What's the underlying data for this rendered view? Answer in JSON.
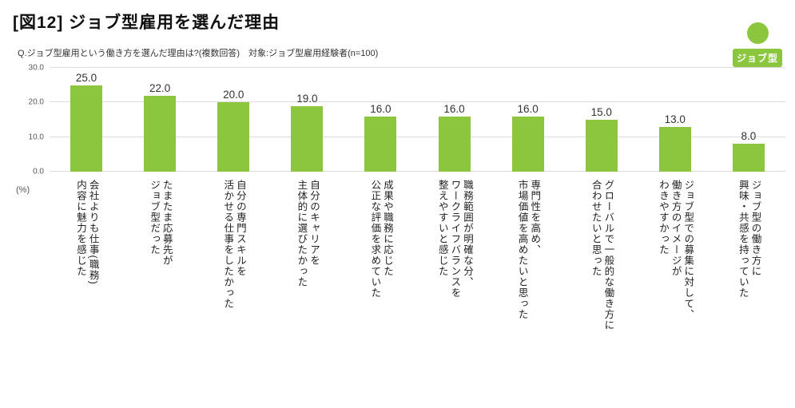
{
  "header": {
    "title": "[図12] ジョブ型雇用を選んだ理由",
    "subtitle": "Q.ジョブ型雇用という働き方を選んだ理由は?(複数回答)　対象:ジョブ型雇用経験者(n=100)",
    "badge_label": "ジョブ型"
  },
  "colors": {
    "bar_green": "#8CC63F",
    "badge_green": "#8CC63F"
  },
  "chart_data": {
    "type": "bar",
    "title": "ジョブ型雇用を選んだ理由",
    "categories": [
      "会社よりも仕事(職務)\n内容に魅力を感じた",
      "たまたま応募先が\nジョブ型だった",
      "自分の専門スキルを\n活かせる仕事をしたかった",
      "自分のキャリアを\n主体的に選びたかった",
      "成果や職務に応じた\n公正な評価を求めていた",
      "職務範囲が明確な分、\nワークライフバランスを\n整えやすいと感じた",
      "専門性を高め、\n市場価値を高めたいと思った",
      "グローバルで一般的な働き方に\n合わせたいと思った",
      "ジョブ型での募集に対して、\n働き方のイメージが\nわきやすかった",
      "ジョブ型の働き方に\n興味・共感を持っていた"
    ],
    "values": [
      25.0,
      22.0,
      20.0,
      19.0,
      16.0,
      16.0,
      16.0,
      15.0,
      13.0,
      8.0
    ],
    "value_labels": [
      "25.0",
      "22.0",
      "20.0",
      "19.0",
      "16.0",
      "16.0",
      "16.0",
      "15.0",
      "13.0",
      "8.0"
    ],
    "ylabel": "(%)",
    "ylim": [
      0,
      30
    ],
    "yticks": [
      {
        "value": 0,
        "label": "0.0"
      },
      {
        "value": 10,
        "label": "10.0"
      },
      {
        "value": 20,
        "label": "20.0"
      },
      {
        "value": 30,
        "label": "30.0"
      }
    ],
    "bar_color": "#8CC63F",
    "grid": true,
    "legend": "none"
  }
}
